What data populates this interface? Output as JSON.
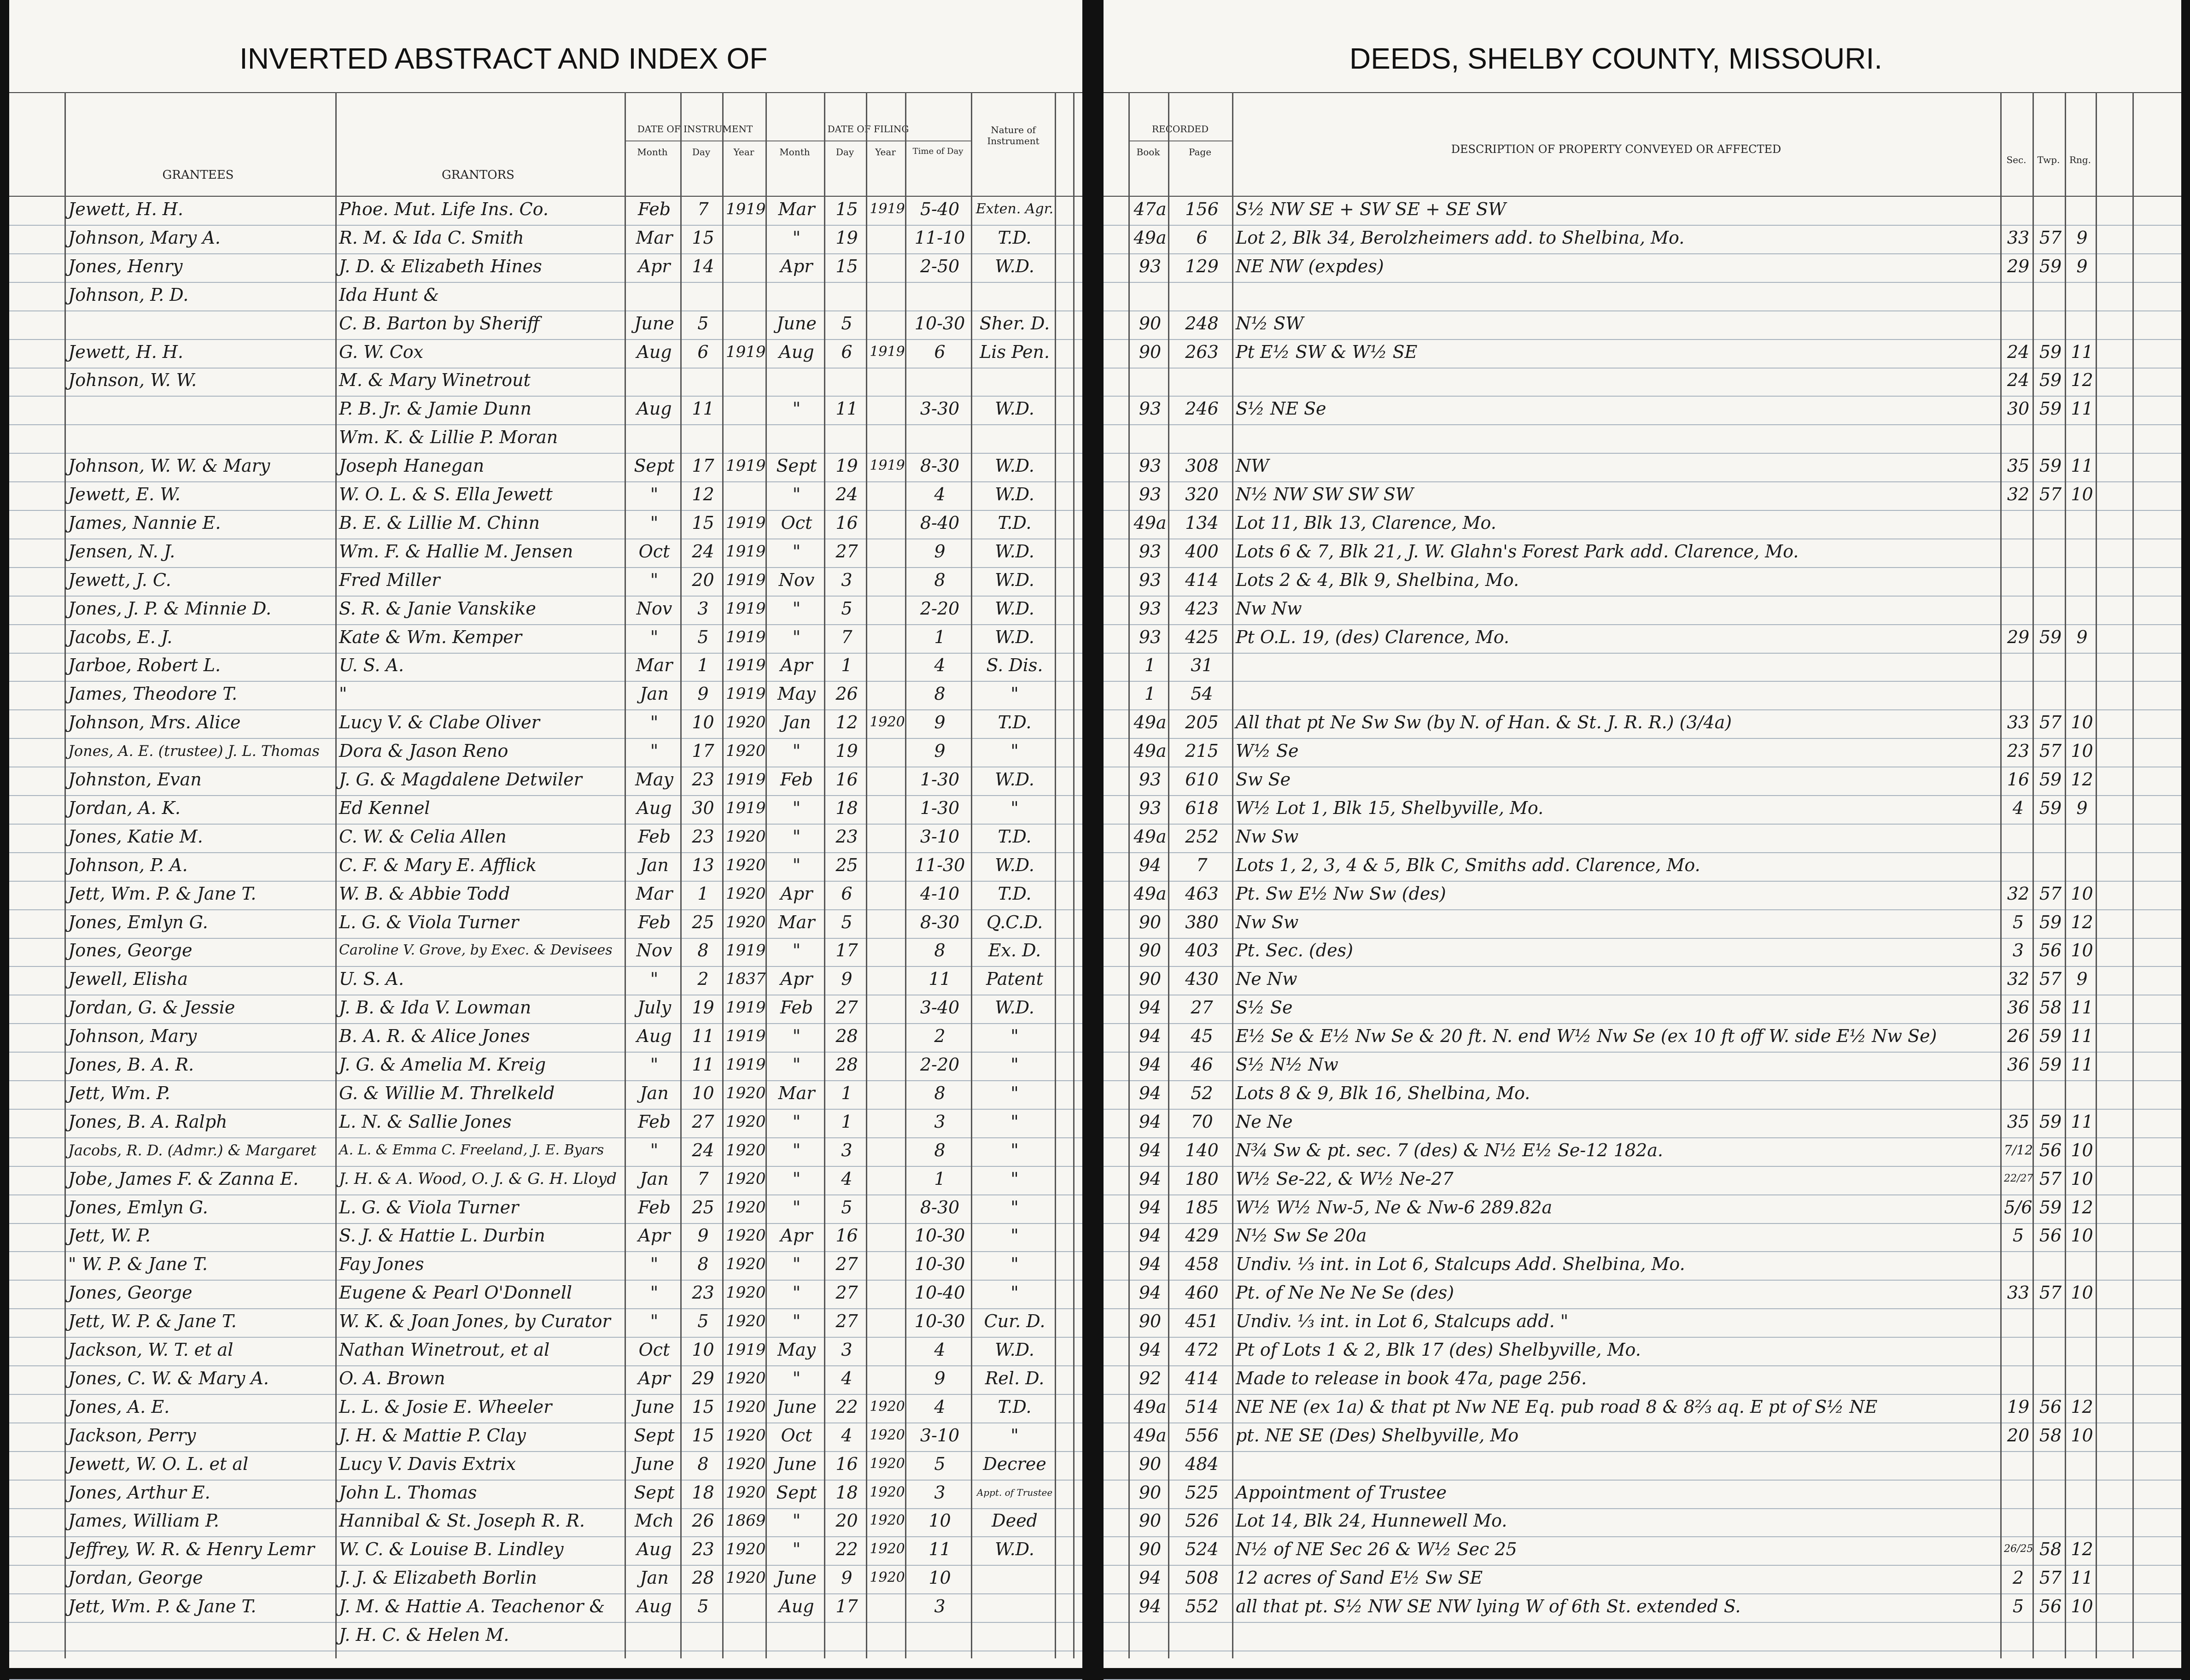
{
  "left_page": {
    "title": "INVERTED ABSTRACT AND INDEX OF",
    "headers": {
      "grantees": "GRANTEES",
      "grantors": "GRANTORS",
      "date_of_instrument": "DATE OF INSTRUMENT",
      "month": "Month",
      "day": "Day",
      "year": "Year",
      "date_of_filing": "DATE OF FILING",
      "filing_month": "Month",
      "filing_day": "Day",
      "filing_year": "Year",
      "time_of_day": "Time of Day",
      "nature": "Nature of Instrument"
    }
  },
  "right_page": {
    "title": "DEEDS, SHELBY COUNTY, MISSOURI.",
    "headers": {
      "recorded": "RECORDED",
      "book": "Book",
      "page": "Page",
      "description": "DESCRIPTION OF PROPERTY CONVEYED OR AFFECTED",
      "sec": "Sec.",
      "twp": "Twp.",
      "rng": "Rng."
    }
  },
  "table": {
    "rows": [
      [
        "Jewett, H. H.",
        "Phoe. Mut. Life Ins. Co.",
        "Feb",
        "7",
        "1919",
        "Mar",
        "15",
        "1919",
        "5-40",
        "Exten. Agr.",
        "47a",
        "156",
        "S½ NW SE + SW SE + SE SW",
        null,
        null,
        null
      ],
      [
        "Johnson, Mary A.",
        "R. M. & Ida C. Smith",
        "Mar",
        "15",
        null,
        "\"",
        "19",
        null,
        "11-10",
        "T.D.",
        "49a",
        "6",
        "Lot 2, Blk 34, Berolzheimers add. to Shelbina, Mo.",
        "33",
        "57",
        "9"
      ],
      [
        "Jones, Henry",
        "J. D. & Elizabeth Hines",
        "Apr",
        "14",
        null,
        "Apr",
        "15",
        null,
        "2-50",
        "W.D.",
        "93",
        "129",
        "NE NW (expdes)",
        "29",
        "59",
        "9"
      ],
      [
        "Johnson, P. D.",
        "Ida Hunt &",
        null,
        null,
        null,
        null,
        null,
        null,
        null,
        null,
        null,
        null,
        null,
        null,
        null,
        null
      ],
      [
        null,
        "C. B. Barton by Sheriff",
        "June",
        "5",
        null,
        "June",
        "5",
        null,
        "10-30",
        "Sher. D.",
        "90",
        "248",
        "N½ SW",
        null,
        null,
        null
      ],
      [
        "Jewett, H. H.",
        "G. W. Cox",
        "Aug",
        "6",
        "1919",
        "Aug",
        "6",
        "1919",
        "6",
        "Lis Pen.",
        "90",
        "263",
        "Pt E½ SW & W½ SE",
        "24",
        "59",
        "11"
      ],
      [
        "Johnson, W. W.",
        "M. & Mary Winetrout",
        null,
        null,
        null,
        null,
        null,
        null,
        null,
        null,
        null,
        null,
        null,
        "24",
        "59",
        "12"
      ],
      [
        null,
        "P. B. Jr. & Jamie Dunn",
        "Aug",
        "11",
        null,
        "\"",
        "11",
        null,
        "3-30",
        "W.D.",
        "93",
        "246",
        "S½ NE Se",
        "30",
        "59",
        "11"
      ],
      [
        null,
        "Wm. K. & Lillie P. Moran",
        null,
        null,
        null,
        null,
        null,
        null,
        null,
        null,
        null,
        null,
        null,
        null,
        null,
        null
      ],
      [
        "Johnson, W. W. & Mary",
        "Joseph Hanegan",
        "Sept",
        "17",
        "1919",
        "Sept",
        "19",
        "1919",
        "8-30",
        "W.D.",
        "93",
        "308",
        "NW",
        "35",
        "59",
        "11"
      ],
      [
        "Jewett, E. W.",
        "W. O. L. & S. Ella Jewett",
        "\"",
        "12",
        null,
        "\"",
        "24",
        null,
        "4",
        "W.D.",
        "93",
        "320",
        "N½ NW SW SW SW",
        "32",
        "57",
        "10"
      ],
      [
        "James, Nannie E.",
        "B. E. & Lillie M. Chinn",
        "\"",
        "15",
        "1919",
        "Oct",
        "16",
        null,
        "8-40",
        "T.D.",
        "49a",
        "134",
        "Lot 11, Blk 13, Clarence, Mo.",
        null,
        null,
        null
      ],
      [
        "Jensen, N. J.",
        "Wm. F. & Hallie M. Jensen",
        "Oct",
        "24",
        "1919",
        "\"",
        "27",
        null,
        "9",
        "W.D.",
        "93",
        "400",
        "Lots 6 & 7, Blk 21, J. W. Glahn's Forest Park add. Clarence, Mo.",
        null,
        null,
        null
      ],
      [
        "Jewett, J. C.",
        "Fred Miller",
        "\"",
        "20",
        "1919",
        "Nov",
        "3",
        null,
        "8",
        "W.D.",
        "93",
        "414",
        "Lots 2 & 4, Blk 9, Shelbina, Mo.",
        null,
        null,
        null
      ],
      [
        "Jones, J. P. & Minnie D.",
        "S. R. & Janie Vanskike",
        "Nov",
        "3",
        "1919",
        "\"",
        "5",
        null,
        "2-20",
        "W.D.",
        "93",
        "423",
        "Nw Nw",
        null,
        null,
        null
      ],
      [
        "Jacobs, E. J.",
        "Kate & Wm. Kemper",
        "\"",
        "5",
        "1919",
        "\"",
        "7",
        null,
        "1",
        "W.D.",
        "93",
        "425",
        "Pt O.L. 19, (des) Clarence, Mo.",
        "29",
        "59",
        "9"
      ],
      [
        "Jarboe, Robert L.",
        "U. S. A.",
        "Mar",
        "1",
        "1919",
        "Apr",
        "1",
        null,
        "4",
        "S. Dis.",
        "1",
        "31",
        null,
        null,
        null,
        null
      ],
      [
        "James, Theodore T.",
        "\"",
        "Jan",
        "9",
        "1919",
        "May",
        "26",
        null,
        "8",
        "\"",
        "1",
        "54",
        null,
        null,
        null,
        null
      ],
      [
        "Johnson, Mrs. Alice",
        "Lucy V. & Clabe Oliver",
        "\"",
        "10",
        "1920",
        "Jan",
        "12",
        "1920",
        "9",
        "T.D.",
        "49a",
        "205",
        "All that pt Ne Sw Sw (by N. of Han. & St. J. R. R.) (3/4a)",
        "33",
        "57",
        "10"
      ],
      [
        "Jones, A. E. (trustee) J. L. Thomas",
        "Dora & Jason Reno",
        "\"",
        "17",
        "1920",
        "\"",
        "19",
        null,
        "9",
        "\"",
        "49a",
        "215",
        "W½ Se",
        "23",
        "57",
        "10"
      ],
      [
        "Johnston, Evan",
        "J. G. & Magdalene Detwiler",
        "May",
        "23",
        "1919",
        "Feb",
        "16",
        null,
        "1-30",
        "W.D.",
        "93",
        "610",
        "Sw Se",
        "16",
        "59",
        "12"
      ],
      [
        "Jordan, A. K.",
        "Ed Kennel",
        "Aug",
        "30",
        "1919",
        "\"",
        "18",
        null,
        "1-30",
        "\"",
        "93",
        "618",
        "W½ Lot 1, Blk 15, Shelbyville, Mo.",
        "4",
        "59",
        "9"
      ],
      [
        "Jones, Katie M.",
        "C. W. & Celia Allen",
        "Feb",
        "23",
        "1920",
        "\"",
        "23",
        null,
        "3-10",
        "T.D.",
        "49a",
        "252",
        "Nw Sw",
        null,
        null,
        null
      ],
      [
        "Johnson, P. A.",
        "C. F. & Mary E. Afflick",
        "Jan",
        "13",
        "1920",
        "\"",
        "25",
        null,
        "11-30",
        "W.D.",
        "94",
        "7",
        "Lots 1, 2, 3, 4 & 5, Blk C, Smiths add. Clarence, Mo.",
        null,
        null,
        null
      ],
      [
        "Jett, Wm. P. & Jane T.",
        "W. B. & Abbie Todd",
        "Mar",
        "1",
        "1920",
        "Apr",
        "6",
        null,
        "4-10",
        "T.D.",
        "49a",
        "463",
        "Pt. Sw E½ Nw Sw (des)",
        "32",
        "57",
        "10"
      ],
      [
        "Jones, Emlyn G.",
        "L. G. & Viola Turner",
        "Feb",
        "25",
        "1920",
        "Mar",
        "5",
        null,
        "8-30",
        "Q.C.D.",
        "90",
        "380",
        "Nw Sw",
        "5",
        "59",
        "12"
      ],
      [
        "Jones, George",
        "Caroline V. Grove, by Exec. & Devisees",
        "Nov",
        "8",
        "1919",
        "\"",
        "17",
        null,
        "8",
        "Ex. D.",
        "90",
        "403",
        "Pt. Sec. (des)",
        "3",
        "56",
        "10"
      ],
      [
        "Jewell, Elisha",
        "U. S. A.",
        "\"",
        "2",
        "1837",
        "Apr",
        "9",
        null,
        "11",
        "Patent",
        "90",
        "430",
        "Ne Nw",
        "32",
        "57",
        "9"
      ],
      [
        "Jordan, G. & Jessie",
        "J. B. & Ida V. Lowman",
        "July",
        "19",
        "1919",
        "Feb",
        "27",
        null,
        "3-40",
        "W.D.",
        "94",
        "27",
        "S½ Se",
        "36",
        "58",
        "11"
      ],
      [
        "Johnson, Mary",
        "B. A. R. & Alice Jones",
        "Aug",
        "11",
        "1919",
        "\"",
        "28",
        null,
        "2",
        "\"",
        "94",
        "45",
        "E½ Se & E½ Nw Se & 20 ft. N. end W½ Nw Se (ex 10 ft off W. side E½ Nw Se)",
        "26",
        "59",
        "11"
      ],
      [
        "Jones, B. A. R.",
        "J. G. & Amelia M. Kreig",
        "\"",
        "11",
        "1919",
        "\"",
        "28",
        null,
        "2-20",
        "\"",
        "94",
        "46",
        "S½ N½ Nw",
        "36",
        "59",
        "11"
      ],
      [
        "Jett, Wm. P.",
        "G. & Willie M. Threlkeld",
        "Jan",
        "10",
        "1920",
        "Mar",
        "1",
        null,
        "8",
        "\"",
        "94",
        "52",
        "Lots 8 & 9, Blk 16, Shelbina, Mo.",
        null,
        null,
        null
      ],
      [
        "Jones, B. A. Ralph",
        "L. N. & Sallie Jones",
        "Feb",
        "27",
        "1920",
        "\"",
        "1",
        null,
        "3",
        "\"",
        "94",
        "70",
        "Ne Ne",
        "35",
        "59",
        "11"
      ],
      [
        "Jacobs, R. D. (Admr.) & Margaret",
        "A. L. & Emma C. Freeland, J. E. Byars",
        "\"",
        "24",
        "1920",
        "\"",
        "3",
        null,
        "8",
        "\"",
        "94",
        "140",
        "N¾ Sw & pt. sec. 7 (des) & N½ E½ Se-12     182a.",
        "7/12",
        "56",
        "10"
      ],
      [
        "Jobe, James F. & Zanna E.",
        "J. H. & A. Wood, O. J. & G. H. Lloyd",
        "Jan",
        "7",
        "1920",
        "\"",
        "4",
        null,
        "1",
        "\"",
        "94",
        "180",
        "W½ Se-22, & W½ Ne-27",
        "22/27",
        "57",
        "10"
      ],
      [
        "Jones, Emlyn G.",
        "L. G. & Viola Turner",
        "Feb",
        "25",
        "1920",
        "\"",
        "5",
        null,
        "8-30",
        "\"",
        "94",
        "185",
        "W½ W½ Nw-5, Ne & Nw-6     289.82a",
        "5/6",
        "59",
        "12"
      ],
      [
        "Jett, W. P.",
        "S. J. & Hattie L. Durbin",
        "Apr",
        "9",
        "1920",
        "Apr",
        "16",
        null,
        "10-30",
        "\"",
        "94",
        "429",
        "N½ Sw Se     20a",
        "5",
        "56",
        "10"
      ],
      [
        "\" W. P. & Jane T.",
        "Fay Jones",
        "\"",
        "8",
        "1920",
        "\"",
        "27",
        null,
        "10-30",
        "\"",
        "94",
        "458",
        "Undiv. ⅓ int. in Lot 6, Stalcups Add. Shelbina, Mo.",
        null,
        null,
        null
      ],
      [
        "Jones, George",
        "Eugene & Pearl O'Donnell",
        "\"",
        "23",
        "1920",
        "\"",
        "27",
        null,
        "10-40",
        "\"",
        "94",
        "460",
        "Pt. of Ne Ne Ne Se (des)",
        "33",
        "57",
        "10"
      ],
      [
        "Jett, W. P. & Jane T.",
        "W. K. & Joan Jones, by Curator",
        "\"",
        "5",
        "1920",
        "\"",
        "27",
        null,
        "10-30",
        "Cur. D.",
        "90",
        "451",
        "Undiv. ⅓ int. in Lot 6, Stalcups add. \"",
        null,
        null,
        null
      ],
      [
        "Jackson, W. T. et al",
        "Nathan Winetrout, et al",
        "Oct",
        "10",
        "1919",
        "May",
        "3",
        null,
        "4",
        "W.D.",
        "94",
        "472",
        "Pt of Lots 1 & 2, Blk 17 (des) Shelbyville, Mo.",
        null,
        null,
        null
      ],
      [
        "Jones, C. W. & Mary A.",
        "O. A. Brown",
        "Apr",
        "29",
        "1920",
        "\"",
        "4",
        null,
        "9",
        "Rel. D.",
        "92",
        "414",
        "Made to release in book 47a, page 256.",
        null,
        null,
        null
      ],
      [
        "Jones, A. E.",
        "L. L. & Josie E. Wheeler",
        "June",
        "15",
        "1920",
        "June",
        "22",
        "1920",
        "4",
        "T.D.",
        "49a",
        "514",
        "NE NE (ex 1a) & that pt Nw NE Eq. pub road 8 & 8⅔ aq. E pt of S½ NE",
        "19",
        "56",
        "12"
      ],
      [
        "Jackson, Perry",
        "J. H. & Mattie P. Clay",
        "Sept",
        "15",
        "1920",
        "Oct",
        "4",
        "1920",
        "3-10",
        "\"",
        "49a",
        "556",
        "pt. NE SE (Des) Shelbyville, Mo",
        "20",
        "58",
        "10"
      ],
      [
        "Jewett, W. O. L. et al",
        "Lucy V. Davis Extrix",
        "June",
        "8",
        "1920",
        "June",
        "16",
        "1920",
        "5",
        "Decree",
        "90",
        "484",
        null,
        null,
        null,
        null
      ],
      [
        "Jones, Arthur E.",
        "John L. Thomas",
        "Sept",
        "18",
        "1920",
        "Sept",
        "18",
        "1920",
        "3",
        "Appt. of Trustee",
        "90",
        "525",
        "Appointment of Trustee",
        null,
        null,
        null
      ],
      [
        "James, William P.",
        "Hannibal & St. Joseph R. R.",
        "Mch",
        "26",
        "1869",
        "\"",
        "20",
        "1920",
        "10",
        "Deed",
        "90",
        "526",
        "Lot 14, Blk 24, Hunnewell Mo.",
        null,
        null,
        null
      ],
      [
        "Jeffrey, W. R. & Henry Lemr",
        "W. C. & Louise B. Lindley",
        "Aug",
        "23",
        "1920",
        "\"",
        "22",
        "1920",
        "11",
        "W.D.",
        "90",
        "524",
        "N½ of NE Sec 26 & W½ Sec 25",
        "26/25",
        "58",
        "12"
      ],
      [
        "Jordan, George",
        "J. J. & Elizabeth Borlin",
        "Jan",
        "28",
        "1920",
        "June",
        "9",
        "1920",
        "10",
        null,
        "94",
        "508",
        "12 acres of Sand E½ Sw SE",
        "2",
        "57",
        "11"
      ],
      [
        "Jett, Wm. P. & Jane T.",
        "J. M. & Hattie A. Teachenor &",
        "Aug",
        "5",
        null,
        "Aug",
        "17",
        null,
        "3",
        null,
        "94",
        "552",
        "all that pt. S½ NW SE NW lying W of 6th St. extended S.",
        "5",
        "56",
        "10"
      ],
      [
        null,
        "J. H. C. & Helen M.",
        null,
        null,
        null,
        null,
        null,
        null,
        null,
        null,
        null,
        null,
        null,
        null,
        null,
        null
      ]
    ]
  }
}
